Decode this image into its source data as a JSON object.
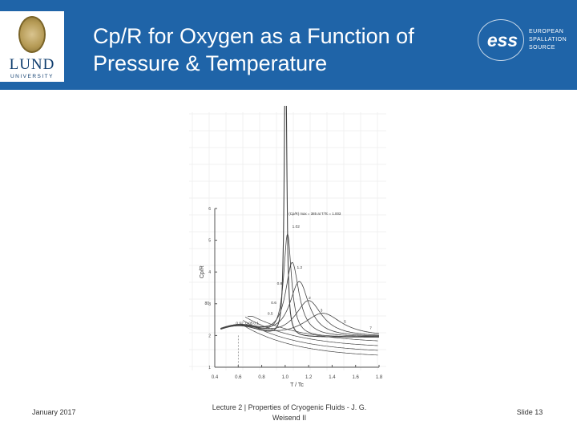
{
  "slide": {
    "title": "Cp/R for Oxygen as a Function of Pressure & Temperature",
    "footer_left": "January 2017",
    "footer_center": "Lecture 2 | Properties of Cryogenic Fluids - J. G. Weisend II",
    "footer_right": "Slide 13"
  },
  "logos": {
    "left": {
      "word": "LUND",
      "sub": "UNIVERSITY"
    },
    "right": {
      "word": "ess",
      "lines": [
        "EUROPEAN",
        "SPALLATION",
        "SOURCE"
      ]
    }
  },
  "chart_data": {
    "type": "line",
    "title": "",
    "xlabel": "T / Tc",
    "ylabel": "Cp/R",
    "xlim": [
      0.4,
      1.8
    ],
    "ylim": [
      1,
      6
    ],
    "x_ticks": [
      "0.4",
      "0.6",
      "0.8",
      "1.0",
      "1.2",
      "1.4",
      "1.6",
      "1.8"
    ],
    "y_ticks": [
      "1",
      "2",
      "3",
      "4",
      "5",
      "6"
    ],
    "y_extra_label": "80",
    "curve_labels": [
      "0.02",
      "0.05",
      "0.1",
      "0.5",
      "0.6",
      "0.8",
      "1.02",
      "1.2",
      "2",
      "3",
      "5",
      "7"
    ],
    "annotation": "(Cp/R) max = 385 at T/Tc = 1.003",
    "grid": true,
    "colors": {
      "header": "#1f64a8",
      "curve": "#444444"
    }
  }
}
